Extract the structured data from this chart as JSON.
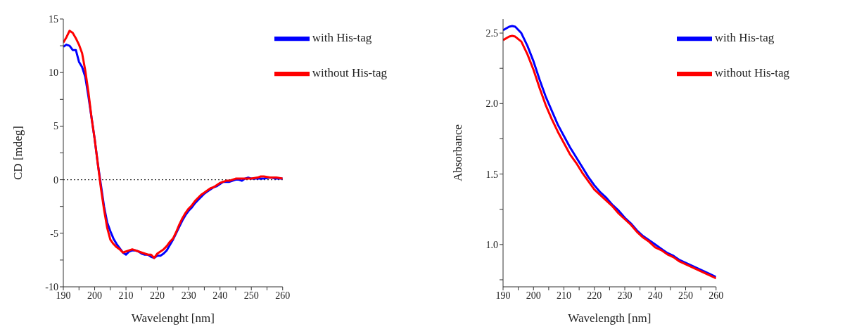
{
  "chart_data": [
    {
      "type": "line",
      "xlabel": "Wavelenght [nm]",
      "ylabel": "CD [mdeg]",
      "xlim": [
        190,
        260
      ],
      "ylim": [
        -10,
        15
      ],
      "xticks": [
        190,
        {
          "value": 195,
          "label": null
        },
        200,
        {
          "value": 205,
          "label": null
        },
        210,
        {
          "value": 215,
          "label": null
        },
        220,
        {
          "value": 225,
          "label": null
        },
        230,
        {
          "value": 235,
          "label": null
        },
        240,
        {
          "value": 245,
          "label": null
        },
        250,
        {
          "value": 255,
          "label": null
        },
        260
      ],
      "yticks": [
        -10,
        {
          "value": -7.5,
          "label": null
        },
        -5,
        {
          "value": -2.5,
          "label": null
        },
        0,
        {
          "value": 2.5,
          "label": null
        },
        5,
        {
          "value": 7.5,
          "label": null
        },
        10,
        {
          "value": 12.5,
          "label": null
        },
        15
      ],
      "grid": false,
      "legend": "top right",
      "marker": "none",
      "line_style": "solid",
      "ref_lines": [
        {
          "axis": "y",
          "value": 0,
          "color": "#333333",
          "line_style": "dotted"
        }
      ],
      "series": [
        {
          "name": "with His-tag",
          "color": "#0000ff",
          "x": [
            190,
            191,
            192,
            193,
            194,
            195,
            196,
            197,
            198,
            199,
            200,
            201,
            202,
            203,
            204,
            205,
            206,
            207,
            208,
            209,
            210,
            211,
            212,
            213,
            214,
            215,
            216,
            217,
            218,
            219,
            220,
            221,
            222,
            223,
            224,
            225,
            226,
            227,
            228,
            229,
            230,
            231,
            232,
            233,
            234,
            235,
            236,
            237,
            238,
            239,
            240,
            241,
            242,
            243,
            244,
            245,
            246,
            247,
            248,
            249,
            250,
            252,
            254,
            256,
            258,
            260
          ],
          "values": [
            12.4,
            12.6,
            12.5,
            12.1,
            12.1,
            11.0,
            10.5,
            9.6,
            7.8,
            5.8,
            3.8,
            1.5,
            -0.5,
            -2.5,
            -4.0,
            -4.8,
            -5.5,
            -6.0,
            -6.4,
            -6.8,
            -7.0,
            -6.7,
            -6.6,
            -6.6,
            -6.7,
            -6.9,
            -7.0,
            -7.0,
            -7.2,
            -7.3,
            -7.1,
            -7.1,
            -6.9,
            -6.6,
            -6.1,
            -5.6,
            -5.0,
            -4.4,
            -3.8,
            -3.3,
            -2.9,
            -2.6,
            -2.2,
            -1.9,
            -1.6,
            -1.3,
            -1.1,
            -0.9,
            -0.7,
            -0.6,
            -0.4,
            -0.2,
            -0.2,
            -0.2,
            -0.1,
            0.0,
            0.0,
            -0.1,
            0.1,
            0.2,
            0.1,
            0.1,
            0.1,
            0.2,
            0.1,
            0.1
          ]
        },
        {
          "name": "without His-tag",
          "color": "#ff0000",
          "x": [
            190,
            191,
            192,
            193,
            194,
            195,
            196,
            197,
            198,
            199,
            200,
            201,
            202,
            203,
            204,
            205,
            206,
            207,
            208,
            209,
            210,
            211,
            212,
            213,
            214,
            215,
            216,
            217,
            218,
            219,
            220,
            221,
            222,
            223,
            224,
            225,
            226,
            227,
            228,
            229,
            230,
            231,
            232,
            233,
            234,
            235,
            236,
            237,
            238,
            239,
            240,
            241,
            242,
            243,
            244,
            245,
            246,
            248,
            250,
            252,
            253,
            254,
            256,
            258,
            260
          ],
          "values": [
            12.8,
            13.3,
            13.9,
            13.7,
            13.2,
            12.6,
            11.8,
            10.2,
            8.2,
            5.8,
            3.8,
            1.5,
            -0.8,
            -2.8,
            -4.5,
            -5.6,
            -6.0,
            -6.3,
            -6.5,
            -6.8,
            -6.7,
            -6.6,
            -6.5,
            -6.6,
            -6.7,
            -6.8,
            -6.9,
            -7.0,
            -7.0,
            -7.3,
            -6.9,
            -6.7,
            -6.5,
            -6.2,
            -5.8,
            -5.5,
            -4.9,
            -4.2,
            -3.6,
            -3.1,
            -2.7,
            -2.4,
            -2.0,
            -1.7,
            -1.4,
            -1.2,
            -1.0,
            -0.8,
            -0.7,
            -0.5,
            -0.3,
            -0.2,
            -0.1,
            -0.1,
            0.0,
            0.1,
            0.1,
            0.1,
            0.1,
            0.2,
            0.3,
            0.3,
            0.2,
            0.2,
            0.1
          ]
        }
      ]
    },
    {
      "type": "line",
      "xlabel": "Wavelength [nm]",
      "ylabel": "Absorbance",
      "xlim": [
        190,
        260
      ],
      "ylim": [
        0.7,
        2.6
      ],
      "xticks": [
        190,
        {
          "value": 195,
          "label": null
        },
        200,
        {
          "value": 205,
          "label": null
        },
        210,
        {
          "value": 215,
          "label": null
        },
        220,
        {
          "value": 225,
          "label": null
        },
        230,
        {
          "value": 235,
          "label": null
        },
        240,
        {
          "value": 245,
          "label": null
        },
        250,
        {
          "value": 255,
          "label": null
        },
        260
      ],
      "yticks": [
        {
          "value": 0.75,
          "label": null
        },
        {
          "value": 1,
          "label": "1.0"
        },
        {
          "value": 1.25,
          "label": null
        },
        1.5,
        {
          "value": 1.75,
          "label": null
        },
        {
          "value": 2,
          "label": "2.0"
        },
        {
          "value": 2.25,
          "label": null
        },
        2.5
      ],
      "grid": false,
      "legend": "top right",
      "marker": "none",
      "line_style": "solid",
      "series": [
        {
          "name": "with His-tag",
          "color": "#0000ff",
          "x": [
            190,
            192,
            193,
            194,
            196,
            198,
            200,
            202,
            204,
            206,
            208,
            210,
            212,
            214,
            216,
            218,
            220,
            222,
            224,
            226,
            228,
            230,
            232,
            234,
            236,
            238,
            240,
            242,
            244,
            246,
            248,
            250,
            252,
            254,
            256,
            258,
            260
          ],
          "values": [
            2.52,
            2.545,
            2.55,
            2.545,
            2.5,
            2.41,
            2.3,
            2.17,
            2.05,
            1.95,
            1.85,
            1.77,
            1.69,
            1.62,
            1.55,
            1.48,
            1.42,
            1.37,
            1.33,
            1.28,
            1.24,
            1.19,
            1.15,
            1.1,
            1.06,
            1.03,
            1.0,
            0.97,
            0.94,
            0.92,
            0.89,
            0.87,
            0.85,
            0.83,
            0.81,
            0.79,
            0.77
          ]
        },
        {
          "name": "without His-tag",
          "color": "#ff0000",
          "x": [
            190,
            192,
            193,
            194,
            196,
            198,
            200,
            202,
            204,
            206,
            208,
            210,
            212,
            214,
            216,
            218,
            220,
            222,
            224,
            226,
            228,
            230,
            232,
            234,
            236,
            238,
            240,
            242,
            244,
            246,
            248,
            250,
            252,
            254,
            256,
            258,
            260
          ],
          "values": [
            2.45,
            2.475,
            2.48,
            2.475,
            2.44,
            2.35,
            2.24,
            2.11,
            1.99,
            1.89,
            1.8,
            1.72,
            1.64,
            1.58,
            1.51,
            1.45,
            1.39,
            1.35,
            1.31,
            1.27,
            1.22,
            1.18,
            1.14,
            1.09,
            1.05,
            1.02,
            0.98,
            0.96,
            0.93,
            0.91,
            0.88,
            0.86,
            0.84,
            0.82,
            0.8,
            0.78,
            0.76
          ]
        }
      ]
    }
  ]
}
